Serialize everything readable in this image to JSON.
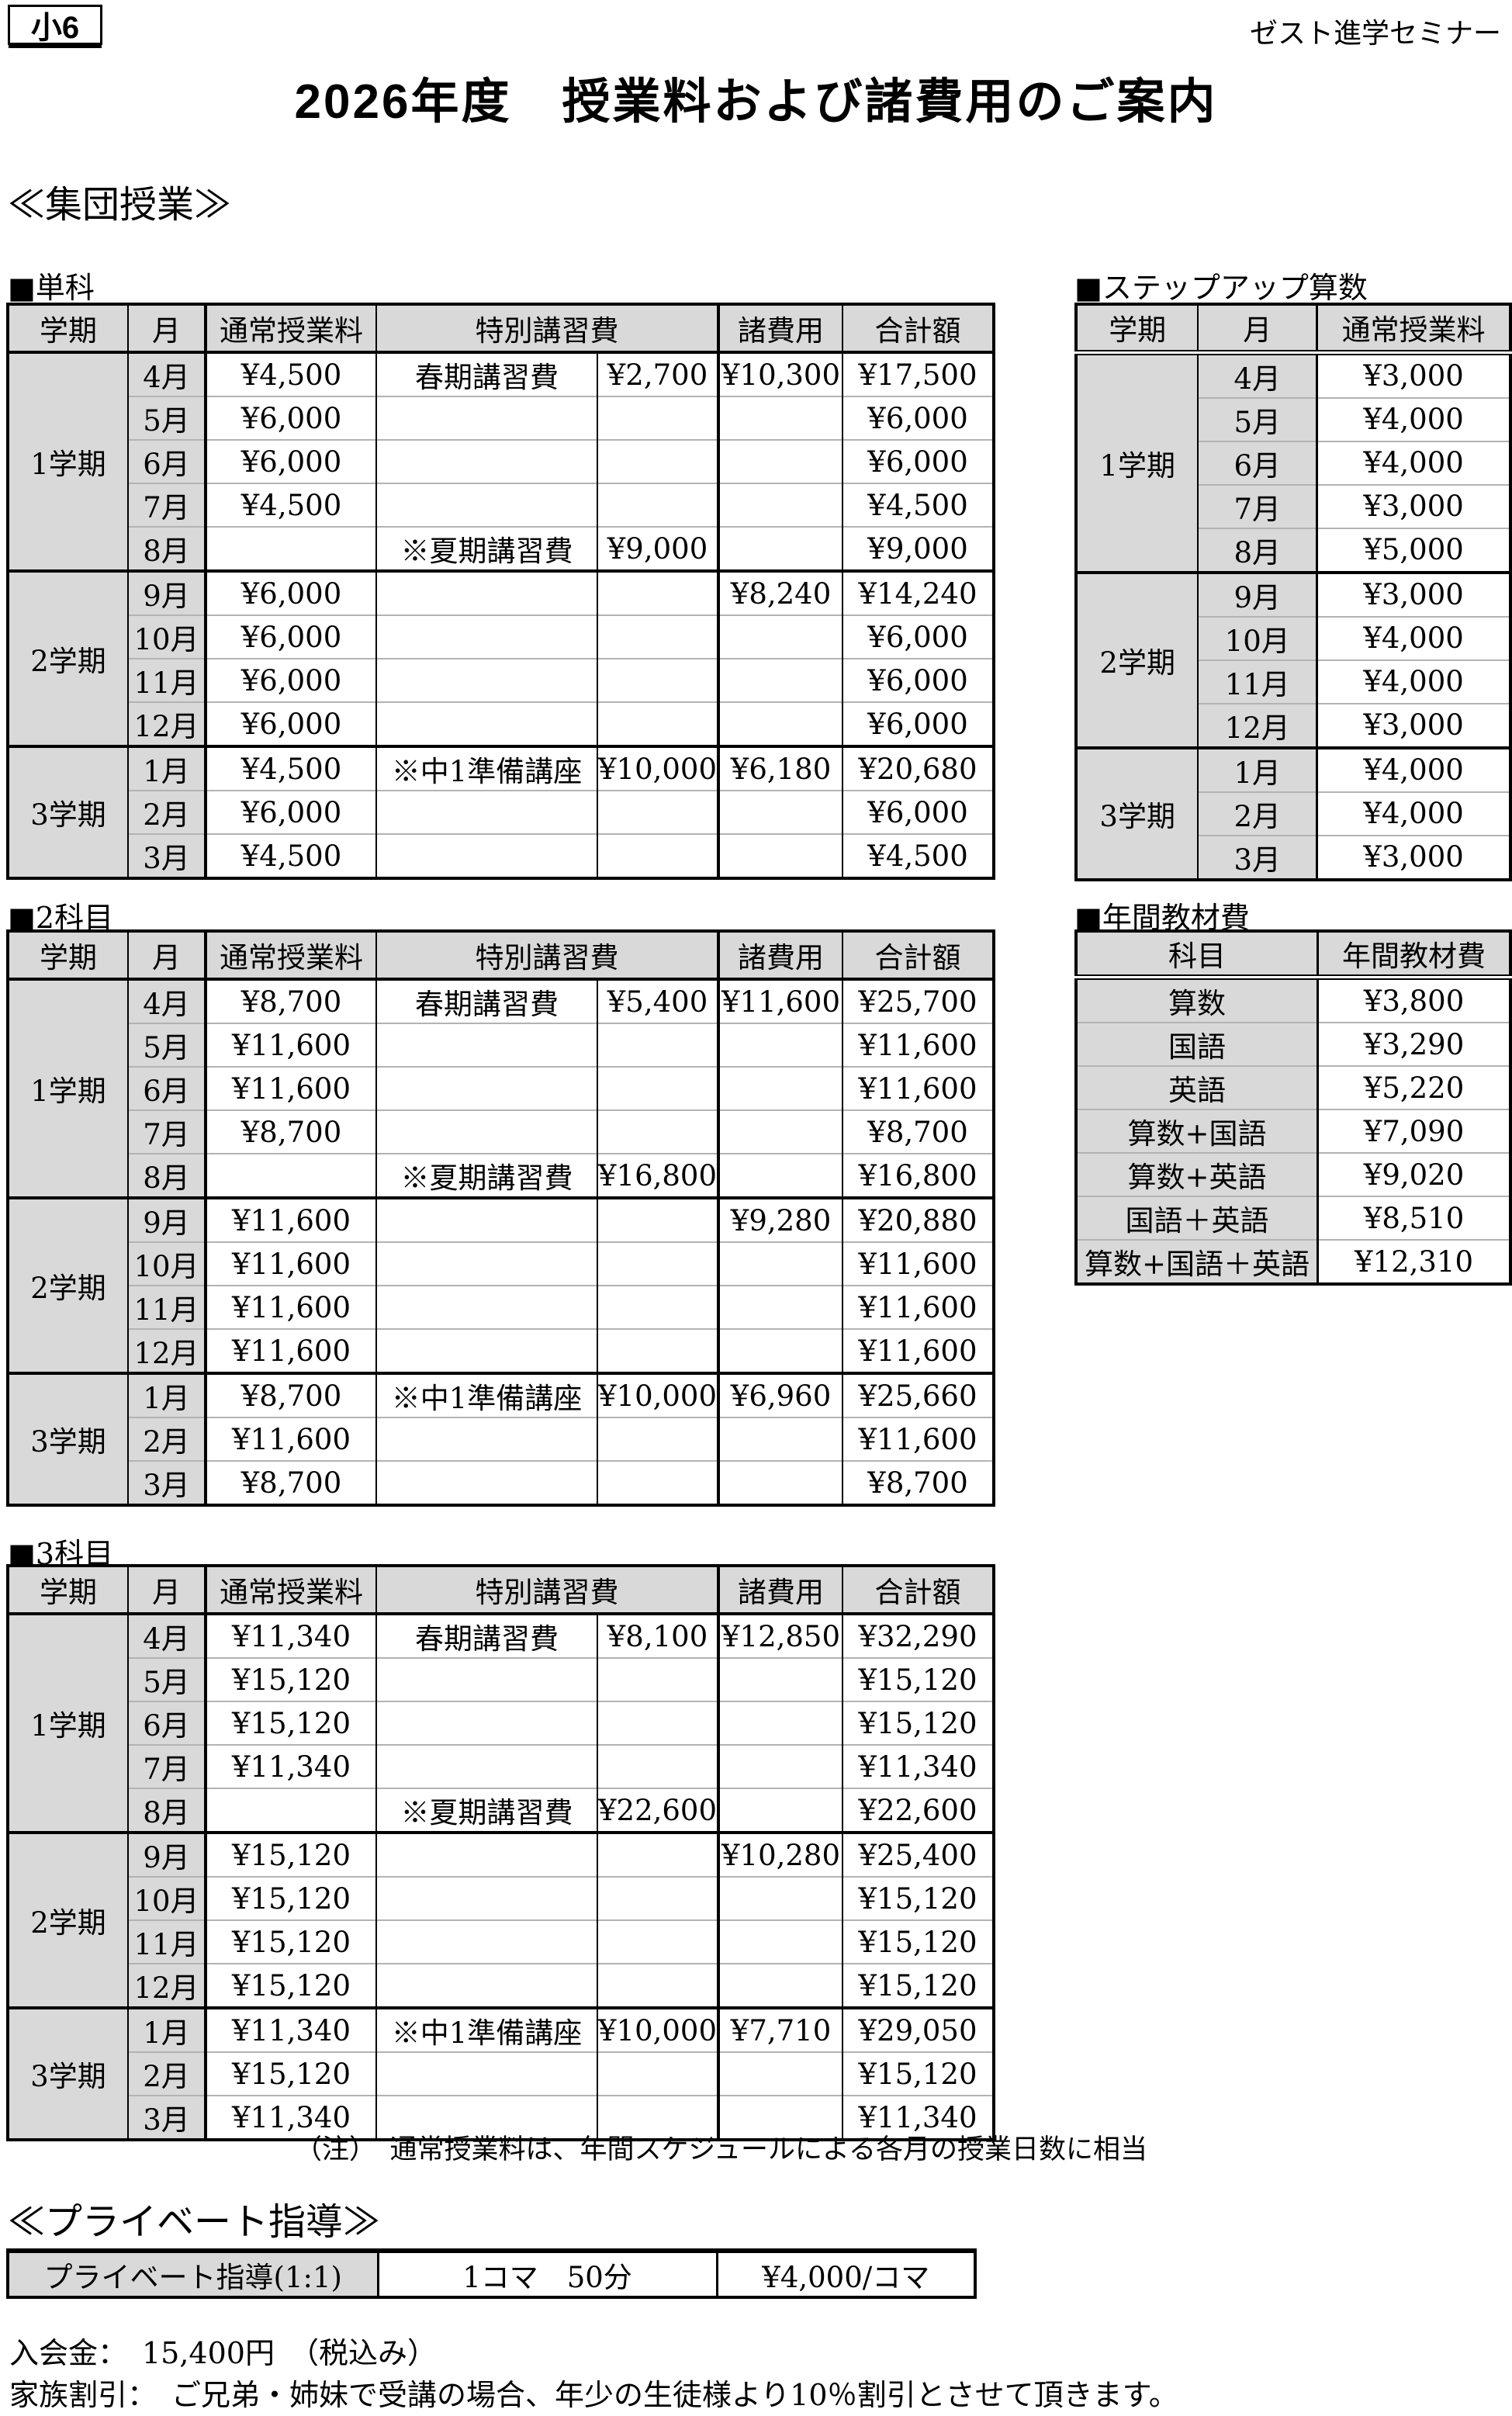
{
  "page": {
    "grade_badge": "小6",
    "school_name": "ゼスト進学セミナー",
    "title": "2026年度　授業料および諸費用のご案内",
    "section_group": "≪集団授業≫",
    "section_private": "≪プライベート指導≫",
    "note": "（注）　通常授業料は、年間スケジュールによる各月の授業日数に相当",
    "admission_line": "入会金：　15,400円　（税込み）",
    "family_discount_line": "家族割引：　ご兄弟・姉妹で受講の場合、年少の生徒様より10％割引とさせて頂きます。"
  },
  "colors": {
    "cell_gray": "#d9d9d9",
    "separator_gray": "#b3b3b3",
    "border_black": "#000000"
  },
  "fee_tables": [
    {
      "heading": "■単科",
      "columns": [
        "学期",
        "月",
        "通常授業料",
        "特別講習費",
        "諸費用",
        "合計額"
      ],
      "terms": [
        {
          "label": "1学期",
          "rows": [
            {
              "month": "4月",
              "regular": "¥4,500",
              "special_name": "春期講習費",
              "special_fee": "¥2,700",
              "misc": "¥10,300",
              "total": "¥17,500"
            },
            {
              "month": "5月",
              "regular": "¥6,000",
              "special_name": "",
              "special_fee": "",
              "misc": "",
              "total": "¥6,000"
            },
            {
              "month": "6月",
              "regular": "¥6,000",
              "special_name": "",
              "special_fee": "",
              "misc": "",
              "total": "¥6,000"
            },
            {
              "month": "7月",
              "regular": "¥4,500",
              "special_name": "",
              "special_fee": "",
              "misc": "",
              "total": "¥4,500"
            },
            {
              "month": "8月",
              "regular": "",
              "special_name": "※夏期講習費",
              "special_fee": "¥9,000",
              "misc": "",
              "total": "¥9,000"
            }
          ]
        },
        {
          "label": "2学期",
          "rows": [
            {
              "month": "9月",
              "regular": "¥6,000",
              "special_name": "",
              "special_fee": "",
              "misc": "¥8,240",
              "total": "¥14,240"
            },
            {
              "month": "10月",
              "regular": "¥6,000",
              "special_name": "",
              "special_fee": "",
              "misc": "",
              "total": "¥6,000"
            },
            {
              "month": "11月",
              "regular": "¥6,000",
              "special_name": "",
              "special_fee": "",
              "misc": "",
              "total": "¥6,000"
            },
            {
              "month": "12月",
              "regular": "¥6,000",
              "special_name": "",
              "special_fee": "",
              "misc": "",
              "total": "¥6,000"
            }
          ]
        },
        {
          "label": "3学期",
          "rows": [
            {
              "month": "1月",
              "regular": "¥4,500",
              "special_name": "※中1準備講座",
              "special_fee": "¥10,000",
              "misc": "¥6,180",
              "total": "¥20,680"
            },
            {
              "month": "2月",
              "regular": "¥6,000",
              "special_name": "",
              "special_fee": "",
              "misc": "",
              "total": "¥6,000"
            },
            {
              "month": "3月",
              "regular": "¥4,500",
              "special_name": "",
              "special_fee": "",
              "misc": "",
              "total": "¥4,500"
            }
          ]
        }
      ]
    },
    {
      "heading": "■2科目",
      "columns": [
        "学期",
        "月",
        "通常授業料",
        "特別講習費",
        "諸費用",
        "合計額"
      ],
      "terms": [
        {
          "label": "1学期",
          "rows": [
            {
              "month": "4月",
              "regular": "¥8,700",
              "special_name": "春期講習費",
              "special_fee": "¥5,400",
              "misc": "¥11,600",
              "total": "¥25,700"
            },
            {
              "month": "5月",
              "regular": "¥11,600",
              "special_name": "",
              "special_fee": "",
              "misc": "",
              "total": "¥11,600"
            },
            {
              "month": "6月",
              "regular": "¥11,600",
              "special_name": "",
              "special_fee": "",
              "misc": "",
              "total": "¥11,600"
            },
            {
              "month": "7月",
              "regular": "¥8,700",
              "special_name": "",
              "special_fee": "",
              "misc": "",
              "total": "¥8,700"
            },
            {
              "month": "8月",
              "regular": "",
              "special_name": "※夏期講習費",
              "special_fee": "¥16,800",
              "misc": "",
              "total": "¥16,800"
            }
          ]
        },
        {
          "label": "2学期",
          "rows": [
            {
              "month": "9月",
              "regular": "¥11,600",
              "special_name": "",
              "special_fee": "",
              "misc": "¥9,280",
              "total": "¥20,880"
            },
            {
              "month": "10月",
              "regular": "¥11,600",
              "special_name": "",
              "special_fee": "",
              "misc": "",
              "total": "¥11,600"
            },
            {
              "month": "11月",
              "regular": "¥11,600",
              "special_name": "",
              "special_fee": "",
              "misc": "",
              "total": "¥11,600"
            },
            {
              "month": "12月",
              "regular": "¥11,600",
              "special_name": "",
              "special_fee": "",
              "misc": "",
              "total": "¥11,600"
            }
          ]
        },
        {
          "label": "3学期",
          "rows": [
            {
              "month": "1月",
              "regular": "¥8,700",
              "special_name": "※中1準備講座",
              "special_fee": "¥10,000",
              "misc": "¥6,960",
              "total": "¥25,660"
            },
            {
              "month": "2月",
              "regular": "¥11,600",
              "special_name": "",
              "special_fee": "",
              "misc": "",
              "total": "¥11,600"
            },
            {
              "month": "3月",
              "regular": "¥8,700",
              "special_name": "",
              "special_fee": "",
              "misc": "",
              "total": "¥8,700"
            }
          ]
        }
      ]
    },
    {
      "heading": "■3科目",
      "columns": [
        "学期",
        "月",
        "通常授業料",
        "特別講習費",
        "諸費用",
        "合計額"
      ],
      "terms": [
        {
          "label": "1学期",
          "rows": [
            {
              "month": "4月",
              "regular": "¥11,340",
              "special_name": "春期講習費",
              "special_fee": "¥8,100",
              "misc": "¥12,850",
              "total": "¥32,290"
            },
            {
              "month": "5月",
              "regular": "¥15,120",
              "special_name": "",
              "special_fee": "",
              "misc": "",
              "total": "¥15,120"
            },
            {
              "month": "6月",
              "regular": "¥15,120",
              "special_name": "",
              "special_fee": "",
              "misc": "",
              "total": "¥15,120"
            },
            {
              "month": "7月",
              "regular": "¥11,340",
              "special_name": "",
              "special_fee": "",
              "misc": "",
              "total": "¥11,340"
            },
            {
              "month": "8月",
              "regular": "",
              "special_name": "※夏期講習費",
              "special_fee": "¥22,600",
              "misc": "",
              "total": "¥22,600"
            }
          ]
        },
        {
          "label": "2学期",
          "rows": [
            {
              "month": "9月",
              "regular": "¥15,120",
              "special_name": "",
              "special_fee": "",
              "misc": "¥10,280",
              "total": "¥25,400"
            },
            {
              "month": "10月",
              "regular": "¥15,120",
              "special_name": "",
              "special_fee": "",
              "misc": "",
              "total": "¥15,120"
            },
            {
              "month": "11月",
              "regular": "¥15,120",
              "special_name": "",
              "special_fee": "",
              "misc": "",
              "total": "¥15,120"
            },
            {
              "month": "12月",
              "regular": "¥15,120",
              "special_name": "",
              "special_fee": "",
              "misc": "",
              "total": "¥15,120"
            }
          ]
        },
        {
          "label": "3学期",
          "rows": [
            {
              "month": "1月",
              "regular": "¥11,340",
              "special_name": "※中1準備講座",
              "special_fee": "¥10,000",
              "misc": "¥7,710",
              "total": "¥29,050"
            },
            {
              "month": "2月",
              "regular": "¥15,120",
              "special_name": "",
              "special_fee": "",
              "misc": "",
              "total": "¥15,120"
            },
            {
              "month": "3月",
              "regular": "¥11,340",
              "special_name": "",
              "special_fee": "",
              "misc": "",
              "total": "¥11,340"
            }
          ]
        }
      ]
    }
  ],
  "stepup_table": {
    "heading": "■ステップアップ算数",
    "columns": [
      "学期",
      "月",
      "通常授業料"
    ],
    "terms": [
      {
        "label": "1学期",
        "rows": [
          [
            "4月",
            "¥3,000"
          ],
          [
            "5月",
            "¥4,000"
          ],
          [
            "6月",
            "¥4,000"
          ],
          [
            "7月",
            "¥3,000"
          ],
          [
            "8月",
            "¥5,000"
          ]
        ]
      },
      {
        "label": "2学期",
        "rows": [
          [
            "9月",
            "¥3,000"
          ],
          [
            "10月",
            "¥4,000"
          ],
          [
            "11月",
            "¥4,000"
          ],
          [
            "12月",
            "¥3,000"
          ]
        ]
      },
      {
        "label": "3学期",
        "rows": [
          [
            "1月",
            "¥4,000"
          ],
          [
            "2月",
            "¥4,000"
          ],
          [
            "3月",
            "¥3,000"
          ]
        ]
      }
    ]
  },
  "materials_table": {
    "heading": "■年間教材費",
    "columns": [
      "科目",
      "年間教材費"
    ],
    "rows": [
      [
        "算数",
        "¥3,800"
      ],
      [
        "国語",
        "¥3,290"
      ],
      [
        "英語",
        "¥5,220"
      ],
      [
        "算数+国語",
        "¥7,090"
      ],
      [
        "算数+英語",
        "¥9,020"
      ],
      [
        "国語＋英語",
        "¥8,510"
      ],
      [
        "算数+国語＋英語",
        "¥12,310"
      ]
    ]
  },
  "private_table": {
    "rows": [
      [
        "プライベート指導(1:1)",
        "1コマ　50分",
        "¥4,000/コマ"
      ]
    ]
  }
}
